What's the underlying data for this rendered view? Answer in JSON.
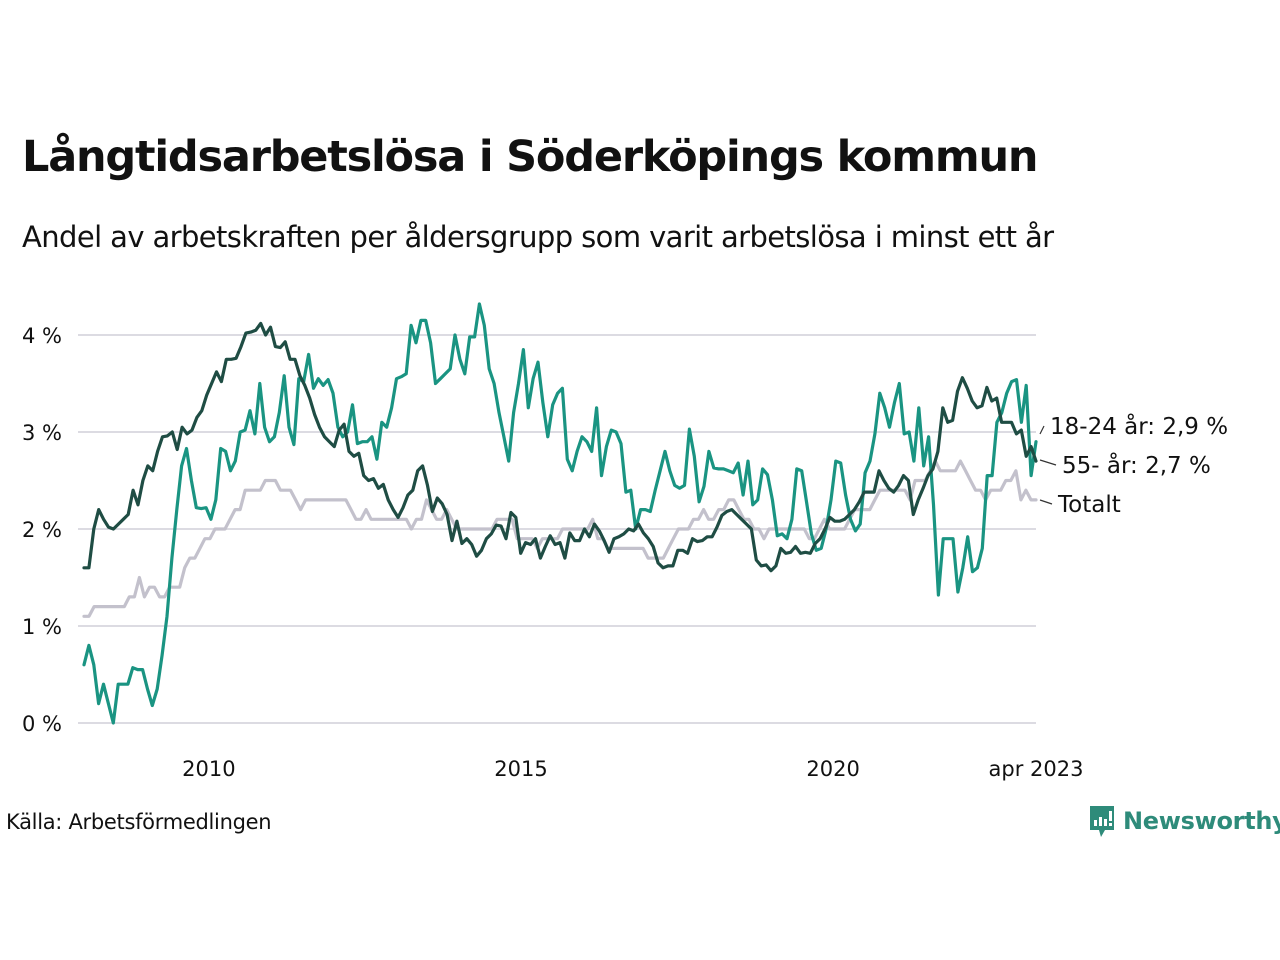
{
  "header": {
    "title": "Långtidsarbetslösa i Söderköpings kommun",
    "subtitle": "Andel av arbetskraften per åldersgrupp som varit arbetslösa i minst ett år"
  },
  "footer": {
    "source": "Källa: Arbetsförmedlingen",
    "brand": "Newsworthy",
    "brand_color": "#2e8b7a"
  },
  "chart_data": {
    "type": "line",
    "title": "Långtidsarbetslösa i Söderköpings kommun",
    "subtitle": "Andel av arbetskraften per åldersgrupp som varit arbetslösa i minst ett år",
    "xlabel": "",
    "ylabel": "",
    "x_start": "2008-01",
    "x_end": "2023-04",
    "x_frequency": "monthly",
    "xlim": [
      2008.0,
      2023.25
    ],
    "ylim": [
      0,
      4.3
    ],
    "y_ticks": [
      0,
      1,
      2,
      3,
      4
    ],
    "y_tick_labels": [
      "0 %",
      "1 %",
      "2 %",
      "3 %",
      "4 %"
    ],
    "x_ticks": [
      2010,
      2015,
      2020,
      2023.25
    ],
    "x_tick_labels": [
      "2010",
      "2015",
      "2020",
      "apr 2023"
    ],
    "grid": "horizontal",
    "legend": "end-of-line labels (right)",
    "series": [
      {
        "name": "18-24 år",
        "end_label": "18-24 år: 2,9 %",
        "color": "#1a9482",
        "values": [
          0.6,
          0.8,
          0.6,
          0.2,
          0.4,
          0.2,
          0.0,
          0.4,
          0.4,
          0.4,
          0.57,
          0.55,
          0.55,
          0.35,
          0.18,
          0.35,
          0.7,
          1.1,
          1.7,
          2.2,
          2.65,
          2.83,
          2.5,
          2.22,
          2.21,
          2.22,
          2.1,
          2.3,
          2.83,
          2.8,
          2.6,
          2.7,
          3.0,
          3.02,
          3.22,
          2.98,
          3.5,
          3.05,
          2.9,
          2.95,
          3.2,
          3.58,
          3.05,
          2.87,
          3.55,
          3.52,
          3.8,
          3.45,
          3.55,
          3.48,
          3.54,
          3.4,
          3.05,
          2.95,
          3.0,
          3.28,
          2.88,
          2.9,
          2.9,
          2.95,
          2.72,
          3.1,
          3.05,
          3.25,
          3.55,
          3.57,
          3.6,
          4.1,
          3.92,
          4.15,
          4.15,
          3.92,
          3.5,
          3.55,
          3.6,
          3.65,
          4.0,
          3.75,
          3.6,
          3.98,
          3.98,
          4.32,
          4.1,
          3.65,
          3.5,
          3.2,
          2.95,
          2.7,
          3.2,
          3.5,
          3.85,
          3.25,
          3.55,
          3.72,
          3.3,
          2.95,
          3.28,
          3.4,
          3.45,
          2.72,
          2.6,
          2.8,
          2.95,
          2.9,
          2.8,
          3.25,
          2.55,
          2.85,
          3.02,
          3.0,
          2.88,
          2.38,
          2.4,
          2.0,
          2.2,
          2.2,
          2.18,
          2.4,
          2.6,
          2.8,
          2.6,
          2.45,
          2.42,
          2.45,
          3.03,
          2.75,
          2.28,
          2.44,
          2.8,
          2.63,
          2.62,
          2.62,
          2.6,
          2.58,
          2.68,
          2.35,
          2.7,
          2.25,
          2.3,
          2.62,
          2.56,
          2.3,
          1.93,
          1.95,
          1.9,
          2.1,
          2.62,
          2.6,
          2.28,
          1.95,
          1.78,
          1.8,
          2.0,
          2.3,
          2.7,
          2.68,
          2.35,
          2.1,
          1.98,
          2.05,
          2.58,
          2.7,
          2.98,
          3.4,
          3.25,
          3.05,
          3.3,
          3.5,
          2.98,
          3.0,
          2.7,
          3.25,
          2.65,
          2.95,
          2.25,
          1.32,
          1.9,
          1.9,
          1.9,
          1.35,
          1.6,
          1.92,
          1.56,
          1.6,
          1.8,
          2.55,
          2.55,
          3.1,
          3.2,
          3.4,
          3.52,
          3.54,
          3.1,
          3.48,
          2.55,
          2.9
        ]
      },
      {
        "name": "55- år",
        "end_label": "55- år: 2,7 %",
        "color": "#1f4d44",
        "values": [
          1.6,
          1.6,
          2.0,
          2.2,
          2.1,
          2.02,
          2.0,
          2.05,
          2.1,
          2.15,
          2.4,
          2.25,
          2.5,
          2.65,
          2.6,
          2.8,
          2.95,
          2.96,
          3.0,
          2.82,
          3.05,
          2.98,
          3.02,
          3.15,
          3.22,
          3.38,
          3.5,
          3.62,
          3.52,
          3.75,
          3.75,
          3.76,
          3.88,
          4.02,
          4.03,
          4.05,
          4.12,
          4.0,
          4.08,
          3.88,
          3.87,
          3.93,
          3.75,
          3.75,
          3.58,
          3.48,
          3.35,
          3.18,
          3.05,
          2.95,
          2.9,
          2.85,
          3.02,
          3.08,
          2.8,
          2.75,
          2.78,
          2.55,
          2.5,
          2.52,
          2.42,
          2.46,
          2.3,
          2.2,
          2.12,
          2.22,
          2.35,
          2.4,
          2.6,
          2.65,
          2.45,
          2.18,
          2.32,
          2.26,
          2.15,
          1.88,
          2.08,
          1.85,
          1.9,
          1.84,
          1.72,
          1.78,
          1.9,
          1.95,
          2.04,
          2.03,
          1.9,
          2.17,
          2.12,
          1.75,
          1.86,
          1.84,
          1.9,
          1.7,
          1.82,
          1.93,
          1.84,
          1.86,
          1.7,
          1.96,
          1.88,
          1.88,
          2.0,
          1.92,
          2.05,
          1.98,
          1.88,
          1.76,
          1.9,
          1.92,
          1.95,
          2.0,
          1.98,
          2.05,
          1.96,
          1.9,
          1.82,
          1.65,
          1.6,
          1.62,
          1.62,
          1.78,
          1.78,
          1.75,
          1.9,
          1.87,
          1.88,
          1.92,
          1.92,
          2.02,
          2.14,
          2.18,
          2.2,
          2.15,
          2.1,
          2.05,
          2.0,
          1.68,
          1.62,
          1.63,
          1.57,
          1.62,
          1.8,
          1.75,
          1.76,
          1.82,
          1.75,
          1.76,
          1.75,
          1.85,
          1.9,
          2.0,
          2.12,
          2.08,
          2.08,
          2.1,
          2.15,
          2.2,
          2.28,
          2.38,
          2.38,
          2.38,
          2.6,
          2.5,
          2.42,
          2.38,
          2.45,
          2.55,
          2.5,
          2.15,
          2.3,
          2.42,
          2.55,
          2.62,
          2.8,
          3.25,
          3.1,
          3.12,
          3.42,
          3.56,
          3.45,
          3.32,
          3.25,
          3.27,
          3.46,
          3.32,
          3.35,
          3.1,
          3.1,
          3.1,
          2.98,
          3.02,
          2.75,
          2.85,
          2.7
        ]
      },
      {
        "name": "Totalt",
        "end_label": "Totalt",
        "color": "#c3c1cc",
        "values": [
          1.1,
          1.1,
          1.2,
          1.2,
          1.2,
          1.2,
          1.2,
          1.2,
          1.2,
          1.3,
          1.3,
          1.5,
          1.3,
          1.4,
          1.4,
          1.3,
          1.3,
          1.4,
          1.4,
          1.4,
          1.6,
          1.7,
          1.7,
          1.8,
          1.9,
          1.9,
          2.0,
          2.0,
          2.0,
          2.1,
          2.2,
          2.2,
          2.4,
          2.4,
          2.4,
          2.4,
          2.5,
          2.5,
          2.5,
          2.4,
          2.4,
          2.4,
          2.3,
          2.2,
          2.3,
          2.3,
          2.3,
          2.3,
          2.3,
          2.3,
          2.3,
          2.3,
          2.3,
          2.2,
          2.1,
          2.1,
          2.2,
          2.1,
          2.1,
          2.1,
          2.1,
          2.1,
          2.1,
          2.1,
          2.1,
          2.0,
          2.1,
          2.1,
          2.3,
          2.2,
          2.1,
          2.1,
          2.2,
          2.1,
          2.0,
          2.0,
          2.0,
          2.0,
          2.0,
          2.0,
          2.0,
          2.0,
          2.1,
          2.1,
          2.1,
          2.1,
          1.9,
          1.9,
          1.9,
          1.9,
          1.8,
          1.9,
          1.9,
          1.9,
          1.9,
          2.0,
          2.0,
          2.0,
          2.0,
          2.0,
          2.0,
          2.1,
          1.9,
          1.9,
          1.8,
          1.8,
          1.8,
          1.8,
          1.8,
          1.8,
          1.8,
          1.8,
          1.7,
          1.7,
          1.7,
          1.7,
          1.8,
          1.9,
          2.0,
          2.0,
          2.0,
          2.1,
          2.1,
          2.2,
          2.1,
          2.1,
          2.2,
          2.2,
          2.3,
          2.3,
          2.2,
          2.1,
          2.1,
          2.0,
          2.0,
          1.9,
          2.0,
          2.0,
          2.0,
          2.0,
          2.0,
          2.0,
          2.0,
          2.0,
          1.9,
          1.9,
          2.0,
          2.1,
          2.0,
          2.0,
          2.0,
          2.0,
          2.1,
          2.2,
          2.2,
          2.2,
          2.2,
          2.3,
          2.4,
          2.4,
          2.4,
          2.4,
          2.4,
          2.4,
          2.3,
          2.5,
          2.5,
          2.5,
          2.6,
          2.7,
          2.6,
          2.6,
          2.6,
          2.6,
          2.7,
          2.6,
          2.5,
          2.4,
          2.4,
          2.3,
          2.4,
          2.4,
          2.4,
          2.5,
          2.5,
          2.6,
          2.3,
          2.4,
          2.3,
          2.3
        ]
      }
    ]
  }
}
